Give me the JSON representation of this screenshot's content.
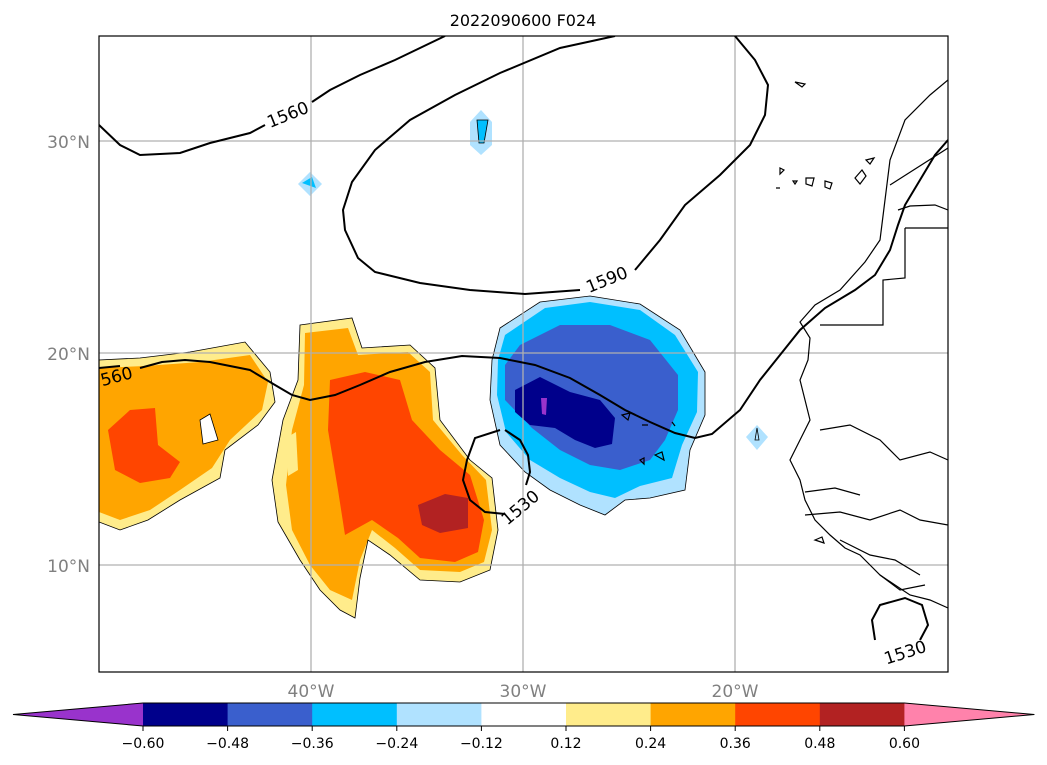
{
  "title": "2022090600 F024",
  "lat_labels": [
    "30°N",
    "20°N",
    "10°N"
  ],
  "lon_labels": [
    "40°W",
    "30°W",
    "20°W"
  ],
  "contour_labels": [
    "1560",
    "1590",
    "560",
    "1530",
    "1530"
  ],
  "colors": {
    "c_lt_060": "#9933cc",
    "c_048_060_neg": "#00008b",
    "c_036_048_neg": "#3a5fcd",
    "c_024_036_neg": "#00bfff",
    "c_012_024_neg": "#b0e2ff",
    "c_neutral": "#ffffff",
    "c_012_024": "#ffec8b",
    "c_024_036": "#ffa500",
    "c_036_048": "#ff4500",
    "c_048_060": "#b22222",
    "c_gt_060": "#ff82ab"
  },
  "colorbar": {
    "ticks": [
      "−0.60",
      "−0.48",
      "−0.36",
      "−0.24",
      "−0.12",
      "0.12",
      "0.24",
      "0.36",
      "0.48",
      "0.60"
    ],
    "colors": [
      "#9933cc",
      "#00008b",
      "#3a5fcd",
      "#00bfff",
      "#b0e2ff",
      "#ffffff",
      "#ffec8b",
      "#ffa500",
      "#ff4500",
      "#b22222",
      "#ff82ab"
    ]
  }
}
